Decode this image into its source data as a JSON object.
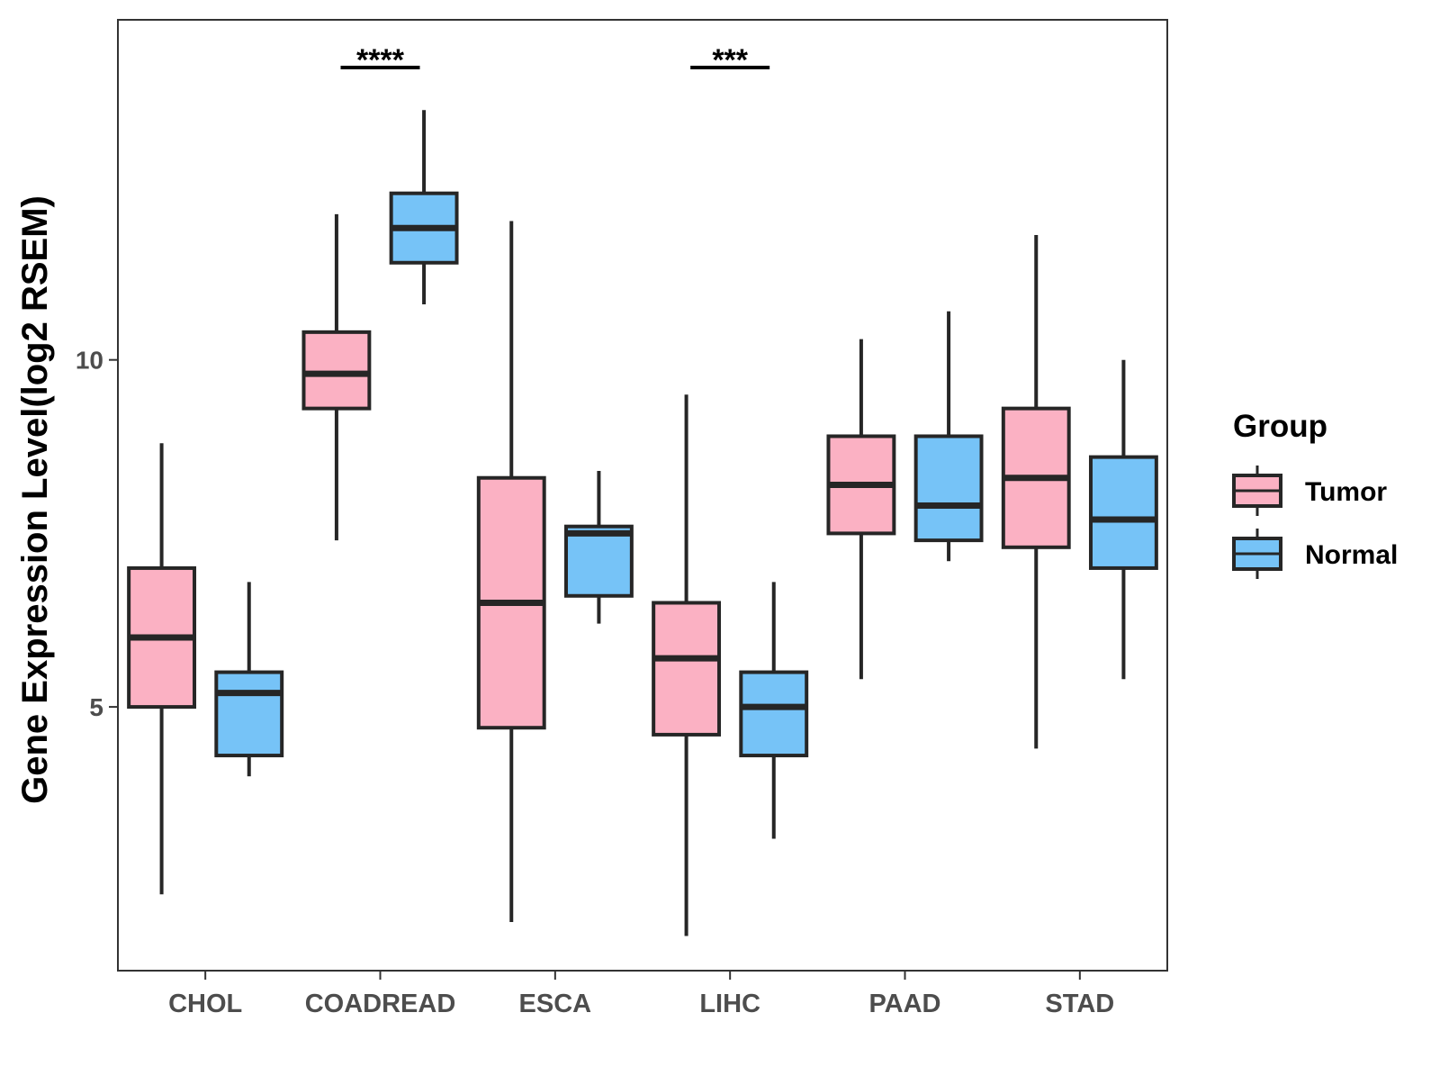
{
  "chart_data": {
    "type": "boxplot",
    "title": "",
    "xlabel": "",
    "ylabel": "Gene Expression Level(log2 RSEM)",
    "ylim": [
      1.2,
      14.9
    ],
    "yticks": [
      5,
      10
    ],
    "ytick_labels": [
      "5",
      "10"
    ],
    "grid": false,
    "legend_position": "right",
    "categories": [
      "CHOL",
      "COADREAD",
      "ESCA",
      "LIHC",
      "PAAD",
      "STAD"
    ],
    "legend": {
      "title": "Group",
      "items": [
        {
          "name": "Tumor",
          "color": "#FBB1C3"
        },
        {
          "name": "Normal",
          "color": "#76C3F7"
        }
      ]
    },
    "series": [
      {
        "name": "Tumor",
        "color": "#FBB1C3",
        "boxes": [
          {
            "whisker_low": 2.3,
            "q1": 5.0,
            "median": 6.0,
            "q3": 7.0,
            "whisker_high": 8.8
          },
          {
            "whisker_low": 7.4,
            "q1": 9.3,
            "median": 9.8,
            "q3": 10.4,
            "whisker_high": 12.1
          },
          {
            "whisker_low": 1.9,
            "q1": 4.7,
            "median": 6.5,
            "q3": 8.3,
            "whisker_high": 12.0
          },
          {
            "whisker_low": 1.7,
            "q1": 4.6,
            "median": 5.7,
            "q3": 6.5,
            "whisker_high": 9.5
          },
          {
            "whisker_low": 5.4,
            "q1": 7.5,
            "median": 8.2,
            "q3": 8.9,
            "whisker_high": 10.3
          },
          {
            "whisker_low": 4.4,
            "q1": 7.3,
            "median": 8.3,
            "q3": 9.3,
            "whisker_high": 11.8
          }
        ]
      },
      {
        "name": "Normal",
        "color": "#76C3F7",
        "boxes": [
          {
            "whisker_low": 4.0,
            "q1": 4.3,
            "median": 5.2,
            "q3": 5.5,
            "whisker_high": 6.8
          },
          {
            "whisker_low": 10.8,
            "q1": 11.4,
            "median": 11.9,
            "q3": 12.4,
            "whisker_high": 13.6
          },
          {
            "whisker_low": 6.2,
            "q1": 6.6,
            "median": 7.5,
            "q3": 7.6,
            "whisker_high": 8.4
          },
          {
            "whisker_low": 3.1,
            "q1": 4.3,
            "median": 5.0,
            "q3": 5.5,
            "whisker_high": 6.8
          },
          {
            "whisker_low": 7.1,
            "q1": 7.4,
            "median": 7.9,
            "q3": 8.9,
            "whisker_high": 10.7
          },
          {
            "whisker_low": 5.4,
            "q1": 7.0,
            "median": 7.7,
            "q3": 8.6,
            "whisker_high": 10.0
          }
        ]
      }
    ],
    "annotations": [
      {
        "category": "COADREAD",
        "label": "****"
      },
      {
        "category": "LIHC",
        "label": "***"
      }
    ]
  }
}
